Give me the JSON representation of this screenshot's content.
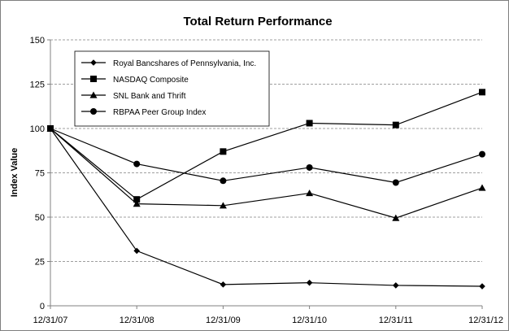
{
  "chart_data": {
    "type": "line",
    "title": "Total Return Performance",
    "xlabel": "",
    "ylabel": "Index Value",
    "x": [
      "12/31/07",
      "12/31/08",
      "12/31/09",
      "12/31/10",
      "12/31/11",
      "12/31/12"
    ],
    "ylim": [
      0,
      150
    ],
    "yticks": [
      0,
      25,
      50,
      75,
      100,
      125,
      150
    ],
    "grid": "horizontal-dashed",
    "legend_position": "top-left",
    "series": [
      {
        "name": "Royal Bancshares of Pennsylvania, Inc.",
        "marker": "diamond",
        "values": [
          100,
          31,
          12,
          13,
          11.5,
          11
        ]
      },
      {
        "name": "NASDAQ Composite",
        "marker": "square",
        "values": [
          100,
          60,
          87,
          103,
          102,
          120.5
        ]
      },
      {
        "name": "SNL Bank and Thrift",
        "marker": "triangle",
        "values": [
          100,
          57.5,
          56.5,
          63.5,
          49.5,
          66.5
        ]
      },
      {
        "name": "RBPAA Peer Group Index",
        "marker": "circle",
        "values": [
          100,
          80,
          70.5,
          78,
          69.5,
          85.5
        ]
      }
    ],
    "colors": {
      "line": "#000000",
      "grid": "#808080",
      "axis": "#808080"
    }
  }
}
